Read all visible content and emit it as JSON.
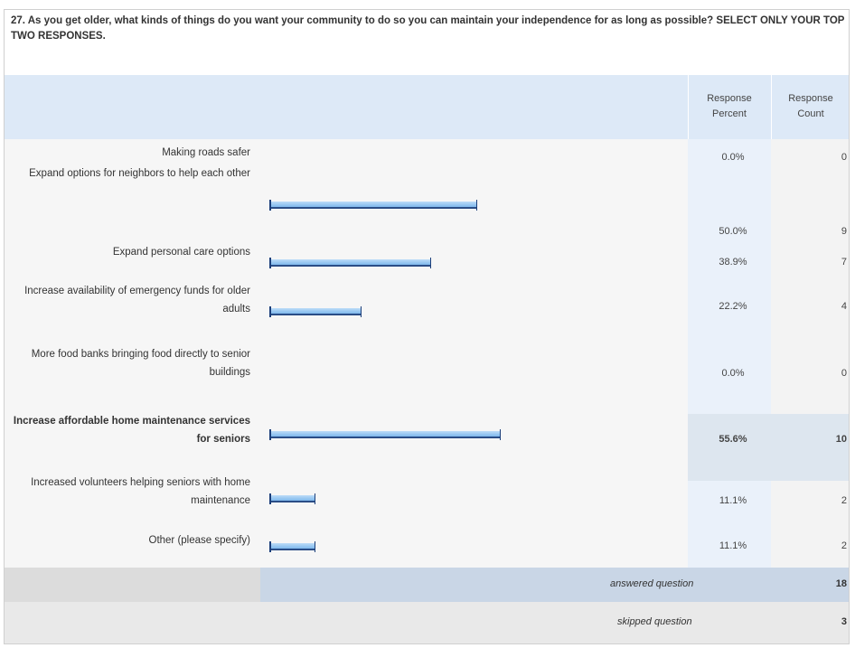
{
  "question": "27. As you get older, what kinds of things do you want your community to do so you can maintain your independence for as long as possible? SELECT ONLY YOUR TOP TWO RESPONSES.",
  "headers": {
    "percent_line1": "Response",
    "percent_line2": "Percent",
    "count_line1": "Response",
    "count_line2": "Count"
  },
  "rows": [
    {
      "label": "Making roads safer",
      "percent": "0.0%",
      "count": "0",
      "value": 0.0
    },
    {
      "label": "Expand options for neighbors to help each other",
      "percent": "50.0%",
      "count": "9",
      "value": 50.0
    },
    {
      "label": "Expand personal care options",
      "percent": "38.9%",
      "count": "7",
      "value": 38.9
    },
    {
      "label": "Increase availability of emergency funds for older adults",
      "percent": "22.2%",
      "count": "4",
      "value": 22.2
    },
    {
      "label": "More food banks bringing food directly to senior buildings",
      "percent": "0.0%",
      "count": "0",
      "value": 0.0
    },
    {
      "label": "Increase affordable home maintenance services for seniors",
      "percent": "55.6%",
      "count": "10",
      "value": 55.6
    },
    {
      "label": "Increased volunteers helping seniors with home maintenance",
      "percent": "11.1%",
      "count": "2",
      "value": 11.1
    },
    {
      "label": "Other (please specify)",
      "percent": "11.1%",
      "count": "2",
      "value": 11.1
    }
  ],
  "footer": {
    "answered_label": "answered question",
    "answered_count": "18",
    "skipped_label": "skipped question",
    "skipped_count": "3"
  },
  "colors": {
    "header_bg": "#dde9f7",
    "bar_fill": "#7fb8ec",
    "bar_border": "#1c3f7a",
    "highlight_bg": "#dde6ef"
  }
}
